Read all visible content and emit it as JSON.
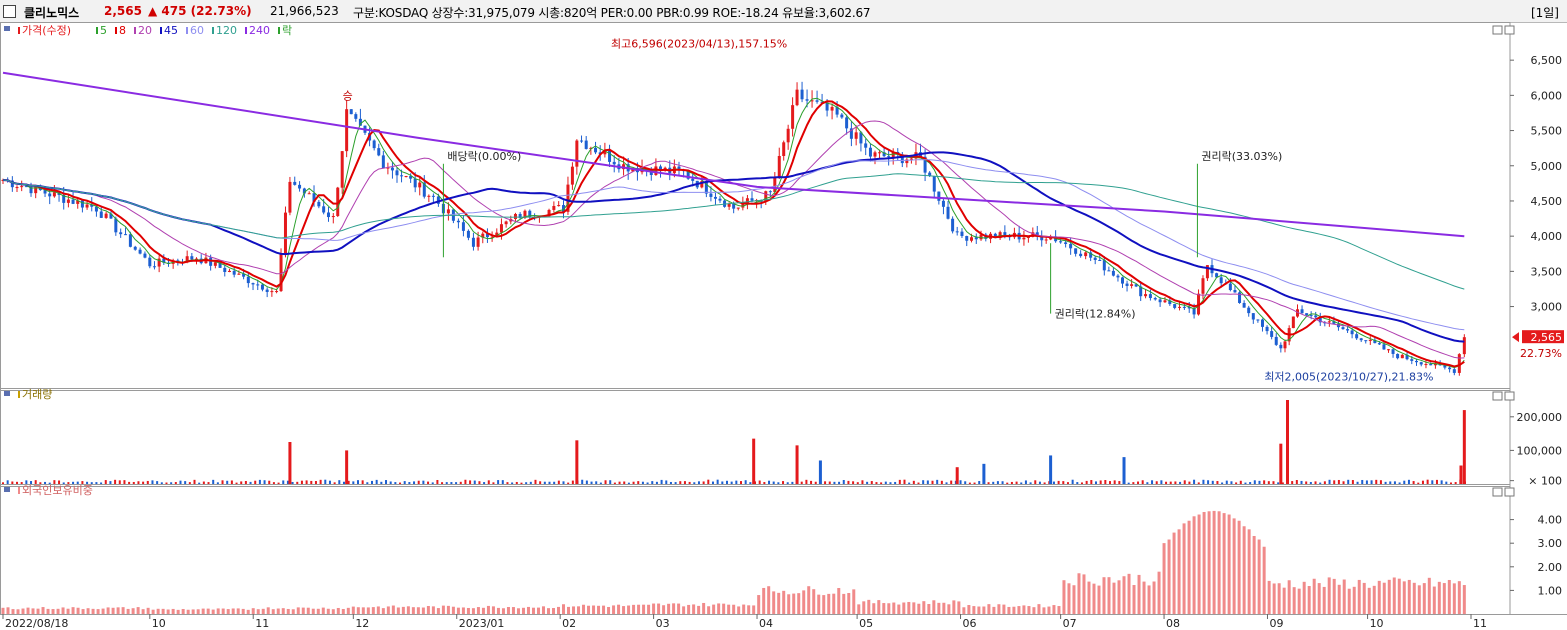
{
  "header": {
    "stock_name": "클리노믹스",
    "price": "2,565",
    "change": "▲ 475 (22.73%)",
    "volume": "21,966,523",
    "info": "구분:KOSDAQ 상장수:31,975,079 시총:820억 PER:0.00 PBR:0.99 ROE:-18.24 유보율:3,602.67",
    "period": "[1일]"
  },
  "legend": {
    "price_label": "가격(수정)",
    "ma": [
      "5",
      "8",
      "20",
      "45",
      "60",
      "120",
      "240"
    ],
    "ex_label": "락"
  },
  "colors": {
    "up": "#e41a1c",
    "down": "#1c5fd1",
    "ma5": "#2ca02c",
    "ma8": "#e00000",
    "ma20": "#b040b0",
    "ma45": "#1010c0",
    "ma60": "#8e8ef0",
    "ma120": "#30a090",
    "ma240": "#8a2be2",
    "foreign": "#f08a8a"
  },
  "panels": {
    "volume_title": "거래량",
    "foreign_title": "외국인보유비중"
  },
  "chart_data": [
    {
      "type": "candlestick",
      "title": "",
      "series": [
        {
          "name": "가격(수정)",
          "points": [
            {
              "x": "2022-08-18",
              "close": 4800
            },
            {
              "x": "2022-09-15",
              "close": 4400
            },
            {
              "x": "2022-10-01",
              "close": 3600
            },
            {
              "x": "2022-10-15",
              "close": 3700
            },
            {
              "x": "2022-11-08",
              "close": 3200
            },
            {
              "x": "2022-11-12",
              "close": 4800
            },
            {
              "x": "2022-11-25",
              "close": 4250
            },
            {
              "x": "2022-11-29",
              "close": 5750
            },
            {
              "x": "2022-12-10",
              "close": 5050
            },
            {
              "x": "2022-12-25",
              "close": 4550
            },
            {
              "x": "2023-01-06",
              "close": 3900
            },
            {
              "x": "2023-01-20",
              "close": 4300
            },
            {
              "x": "2023-02-02",
              "close": 4400
            },
            {
              "x": "2023-02-06",
              "close": 5400
            },
            {
              "x": "2023-02-20",
              "close": 5000
            },
            {
              "x": "2023-03-10",
              "close": 4900
            },
            {
              "x": "2023-03-25",
              "close": 4400
            },
            {
              "x": "2023-04-05",
              "close": 4600
            },
            {
              "x": "2023-04-13",
              "close": 6000
            },
            {
              "x": "2023-04-25",
              "close": 5700
            },
            {
              "x": "2023-05-05",
              "close": 5150
            },
            {
              "x": "2023-05-20",
              "close": 5100
            },
            {
              "x": "2023-05-31",
              "close": 4000
            },
            {
              "x": "2023-06-20",
              "close": 4000
            },
            {
              "x": "2023-06-28",
              "close": 4000
            },
            {
              "x": "2023-07-10",
              "close": 3700
            },
            {
              "x": "2023-07-25",
              "close": 3200
            },
            {
              "x": "2023-08-10",
              "close": 2900
            },
            {
              "x": "2023-08-14",
              "close": 3600
            },
            {
              "x": "2023-08-25",
              "close": 3000
            },
            {
              "x": "2023-09-05",
              "close": 2400
            },
            {
              "x": "2023-09-10",
              "close": 2950
            },
            {
              "x": "2023-09-25",
              "close": 2650
            },
            {
              "x": "2023-10-10",
              "close": 2300
            },
            {
              "x": "2023-10-27",
              "close": 2090
            },
            {
              "x": "2023-10-30",
              "close": 2565
            }
          ]
        },
        {
          "name": "5",
          "values": []
        },
        {
          "name": "8",
          "values": []
        },
        {
          "name": "20",
          "values": []
        },
        {
          "name": "45",
          "values": []
        },
        {
          "name": "60",
          "values": []
        },
        {
          "name": "120",
          "values": []
        },
        {
          "name": "240",
          "values": []
        }
      ],
      "ylim": [
        1900,
        6900
      ],
      "y_ticks": [
        "6,500",
        "6,000",
        "5,500",
        "5,000",
        "4,500",
        "4,000",
        "3,500",
        "3,000"
      ],
      "annotations": [
        {
          "text": "최고6,596(2023/04/13),157.15%",
          "x": "2023-04-13",
          "y": 6596
        },
        {
          "text": "최저2,005(2023/10/27),21.83%",
          "x": "2023-10-27",
          "y": 2005
        },
        {
          "text": "배당락(0.00%)",
          "x": "2022-12-28",
          "y": 5000
        },
        {
          "text": "권리락(33.03%)",
          "x": "2023-08-11",
          "y": 5000
        },
        {
          "text": "권리락(12.84%)",
          "x": "2023-06-28",
          "y": 2900
        },
        {
          "text": "승",
          "x": "2022-11-29",
          "y": 5800
        }
      ],
      "last_price": "2,565",
      "last_pct": "22.73%"
    },
    {
      "type": "bar",
      "title": "거래량",
      "y_ticks": [
        "200,000",
        "100,000",
        "× 100"
      ],
      "ylim": [
        0,
        250000
      ],
      "spikes": [
        {
          "x": "2022-11-12",
          "value": 125000,
          "dir": "up"
        },
        {
          "x": "2022-11-29",
          "value": 100000,
          "dir": "up"
        },
        {
          "x": "2023-02-06",
          "value": 130000,
          "dir": "up"
        },
        {
          "x": "2023-03-31",
          "value": 135000,
          "dir": "up"
        },
        {
          "x": "2023-04-13",
          "value": 115000,
          "dir": "up"
        },
        {
          "x": "2023-04-20",
          "value": 70000,
          "dir": "down"
        },
        {
          "x": "2023-05-31",
          "value": 50000,
          "dir": "up"
        },
        {
          "x": "2023-06-08",
          "value": 60000,
          "dir": "down"
        },
        {
          "x": "2023-06-28",
          "value": 85000,
          "dir": "down"
        },
        {
          "x": "2023-07-20",
          "value": 80000,
          "dir": "down"
        },
        {
          "x": "2023-09-05",
          "value": 120000,
          "dir": "up"
        },
        {
          "x": "2023-09-07",
          "value": 250000,
          "dir": "up"
        },
        {
          "x": "2023-10-29",
          "value": 55000,
          "dir": "up"
        },
        {
          "x": "2023-10-30",
          "value": 220000,
          "dir": "up"
        }
      ]
    },
    {
      "type": "bar",
      "title": "외국인보유비중",
      "y_ticks": [
        "4.00",
        "3.00",
        "2.00",
        "1.00"
      ],
      "ylim": [
        0,
        5
      ],
      "monthly_level": [
        {
          "x": "2022-08",
          "value": 0.25
        },
        {
          "x": "2022-09",
          "value": 0.25
        },
        {
          "x": "2022-10",
          "value": 0.2
        },
        {
          "x": "2022-11",
          "value": 0.25
        },
        {
          "x": "2022-12",
          "value": 0.3
        },
        {
          "x": "2023-01",
          "value": 0.3
        },
        {
          "x": "2023-02",
          "value": 0.35
        },
        {
          "x": "2023-03",
          "value": 0.4
        },
        {
          "x": "2023-04",
          "value": 1.0
        },
        {
          "x": "2023-05",
          "value": 0.5
        },
        {
          "x": "2023-06",
          "value": 0.35
        },
        {
          "x": "2023-07",
          "value": 1.5
        },
        {
          "x": "2023-08",
          "value": 3.8
        },
        {
          "x": "2023-09",
          "value": 1.3
        },
        {
          "x": "2023-10",
          "value": 1.3
        }
      ]
    }
  ],
  "x_axis": {
    "labels": [
      "2022/08/18",
      "10",
      "11",
      "12",
      "2023/01",
      "02",
      "03",
      "04",
      "05",
      "06",
      "07",
      "08",
      "09",
      "10",
      "11"
    ]
  }
}
